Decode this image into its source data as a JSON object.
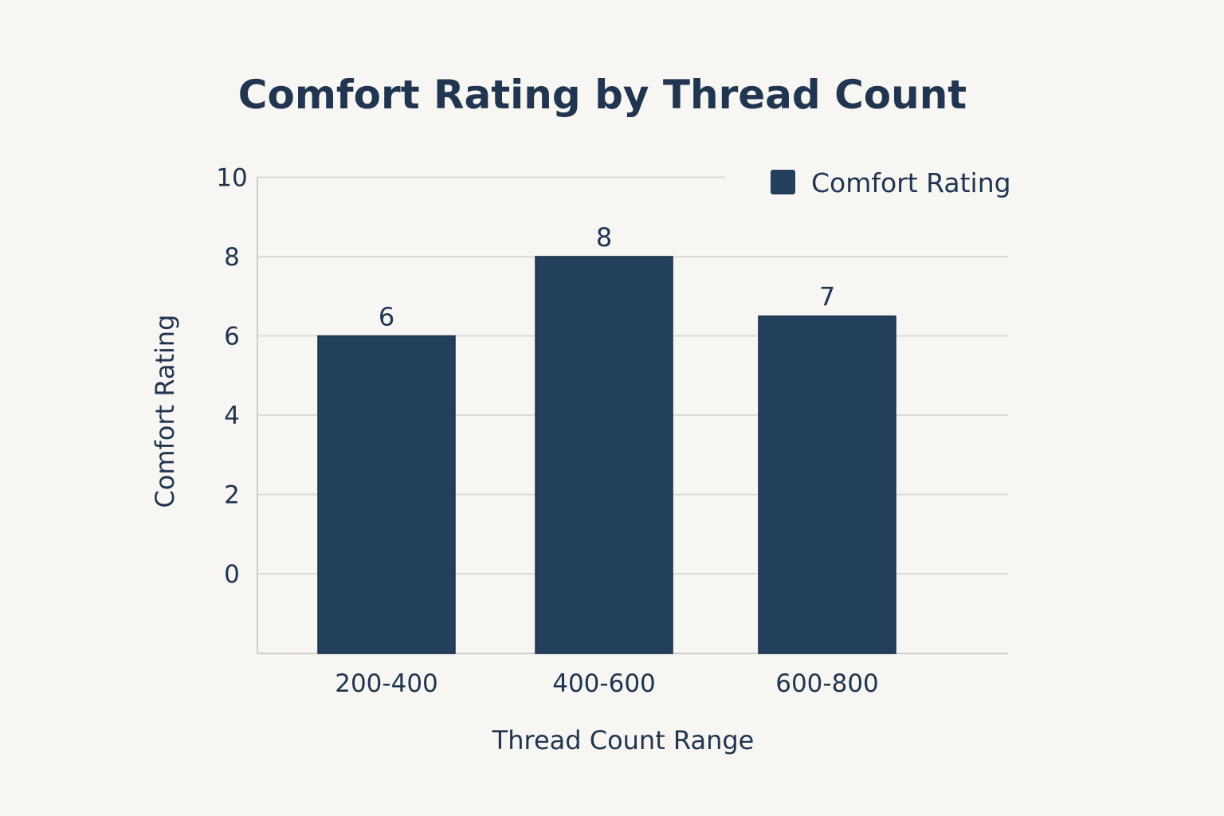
{
  "chart_data": {
    "type": "bar",
    "title": "Comfort Rating by Thread Count",
    "xlabel": "Thread Count Range",
    "ylabel": "Comfort Rating",
    "categories": [
      "200-400",
      "400-600",
      "600-800"
    ],
    "values": [
      6,
      8,
      6.5
    ],
    "data_labels": [
      "6",
      "8",
      "7"
    ],
    "yticks": [
      0,
      2,
      4,
      6,
      8,
      10
    ],
    "ytick_labels": [
      "0",
      "2",
      "4",
      "6",
      "8",
      "10"
    ],
    "ylim": [
      -2,
      10
    ],
    "grid": true,
    "legend": {
      "position": "top-right",
      "entries": [
        "Comfort Rating"
      ]
    },
    "series": [
      {
        "name": "Comfort Rating",
        "values": [
          6,
          8,
          6.5
        ]
      }
    ],
    "colors": {
      "bar": "#223f5c",
      "text": "#1f3550",
      "grid": "#dcdad6",
      "axis": "#cfcdc9",
      "background": "#f8f6f3"
    }
  }
}
